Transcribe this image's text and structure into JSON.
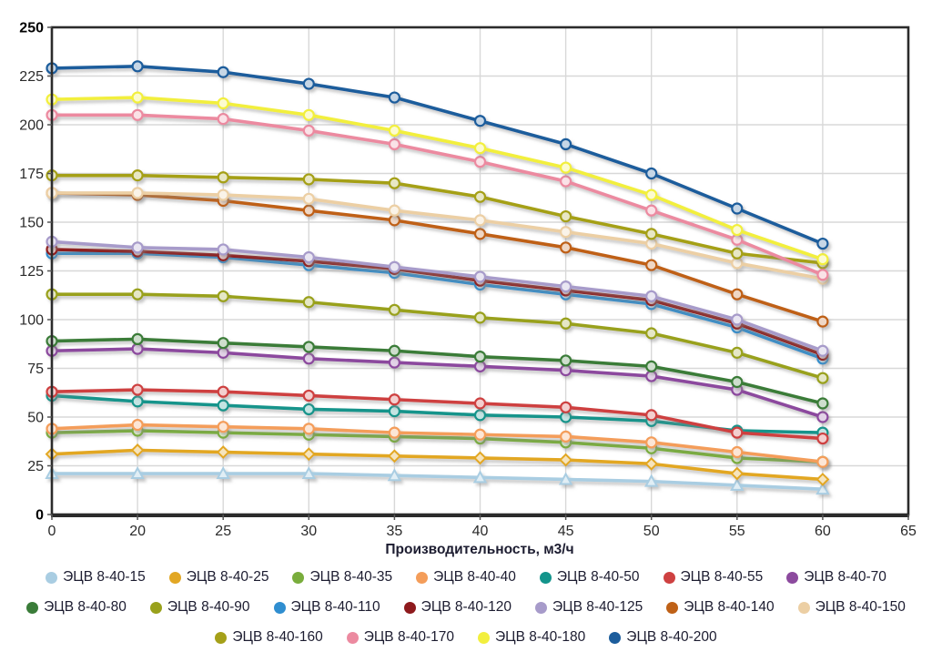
{
  "chart_data": {
    "type": "line",
    "title": "",
    "xlabel": "Производительность, м3/ч",
    "ylabel": "",
    "x_tick_labels": [
      "0",
      "20",
      "25",
      "30",
      "35",
      "40",
      "45",
      "50",
      "55",
      "60",
      "65"
    ],
    "x": [
      0,
      20,
      25,
      30,
      35,
      40,
      45,
      50,
      55,
      60
    ],
    "y_ticks": [
      0,
      25,
      50,
      75,
      100,
      125,
      150,
      175,
      200,
      225,
      250
    ],
    "ylim": [
      0,
      250
    ],
    "grid": true,
    "legend_position": "bottom",
    "grid_color": "#d8d8d8",
    "axis_color": "#2b2b2b",
    "tick_label_color": "#2a2a2a",
    "series": [
      {
        "name": "ЭЦВ 8-40-15",
        "color": "#a9cde2",
        "marker": "triangle",
        "values": [
          21,
          21,
          21,
          21,
          20,
          19,
          18,
          17,
          15,
          13
        ]
      },
      {
        "name": "ЭЦВ 8-40-25",
        "color": "#e2a724",
        "marker": "diamond",
        "values": [
          31,
          33,
          32,
          31,
          30,
          29,
          28,
          26,
          21,
          18
        ]
      },
      {
        "name": "ЭЦВ 8-40-35",
        "color": "#79ad3c",
        "marker": "circle",
        "values": [
          42,
          43,
          42,
          41,
          40,
          39,
          37,
          34,
          29,
          27
        ]
      },
      {
        "name": "ЭЦВ 8-40-40",
        "color": "#f49d5a",
        "marker": "circle",
        "values": [
          44,
          46,
          45,
          44,
          42,
          41,
          40,
          37,
          32,
          27
        ]
      },
      {
        "name": "ЭЦВ 8-40-50",
        "color": "#13948b",
        "marker": "circle",
        "values": [
          61,
          58,
          56,
          54,
          53,
          51,
          50,
          48,
          43,
          42
        ]
      },
      {
        "name": "ЭЦВ 8-40-55",
        "color": "#ce4141",
        "marker": "circle",
        "values": [
          63,
          64,
          63,
          61,
          59,
          57,
          55,
          51,
          42,
          39
        ]
      },
      {
        "name": "ЭЦВ 8-40-70",
        "color": "#8c4a9e",
        "marker": "circle",
        "values": [
          84,
          85,
          83,
          80,
          78,
          76,
          74,
          71,
          64,
          50
        ]
      },
      {
        "name": "ЭЦВ 8-40-80",
        "color": "#3a7c39",
        "marker": "circle",
        "values": [
          89,
          90,
          88,
          86,
          84,
          81,
          79,
          76,
          68,
          57
        ]
      },
      {
        "name": "ЭЦВ 8-40-90",
        "color": "#99a11c",
        "marker": "circle",
        "values": [
          113,
          113,
          112,
          109,
          105,
          101,
          98,
          93,
          83,
          70
        ]
      },
      {
        "name": "ЭЦВ 8-40-110",
        "color": "#2f8ed0",
        "marker": "circle",
        "values": [
          134,
          134,
          132,
          128,
          124,
          118,
          113,
          108,
          96,
          80
        ]
      },
      {
        "name": "ЭЦВ 8-40-120",
        "color": "#8e1a1d",
        "marker": "circle",
        "values": [
          136,
          135,
          133,
          130,
          126,
          120,
          115,
          110,
          98,
          82
        ]
      },
      {
        "name": "ЭЦВ 8-40-125",
        "color": "#a79bca",
        "marker": "circle",
        "values": [
          140,
          137,
          136,
          132,
          127,
          122,
          117,
          112,
          100,
          84
        ]
      },
      {
        "name": "ЭЦВ 8-40-140",
        "color": "#bf6117",
        "marker": "circle",
        "values": [
          165,
          164,
          161,
          156,
          151,
          144,
          137,
          128,
          113,
          99
        ]
      },
      {
        "name": "ЭЦВ 8-40-150",
        "color": "#eccfa4",
        "marker": "circle",
        "values": [
          165,
          165,
          164,
          162,
          156,
          151,
          145,
          139,
          129,
          121
        ]
      },
      {
        "name": "ЭЦВ 8-40-160",
        "color": "#a5a019",
        "marker": "circle",
        "values": [
          174,
          174,
          173,
          172,
          170,
          163,
          153,
          144,
          134,
          129
        ]
      },
      {
        "name": "ЭЦВ 8-40-170",
        "color": "#ec8aa0",
        "marker": "circle",
        "values": [
          205,
          205,
          203,
          197,
          190,
          181,
          171,
          156,
          141,
          123
        ]
      },
      {
        "name": "ЭЦВ 8-40-180",
        "color": "#f2ef3e",
        "marker": "circle",
        "values": [
          213,
          214,
          211,
          205,
          197,
          188,
          178,
          164,
          146,
          131
        ]
      },
      {
        "name": "ЭЦВ 8-40-200",
        "color": "#1c5d9c",
        "marker": "circle",
        "values": [
          229,
          230,
          227,
          221,
          214,
          202,
          190,
          175,
          157,
          139
        ]
      }
    ]
  }
}
